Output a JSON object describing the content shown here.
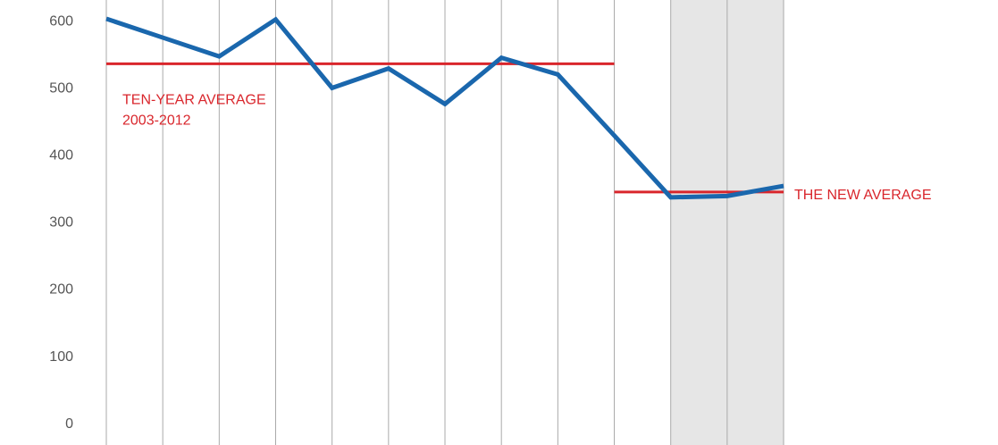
{
  "chart_data": {
    "type": "line",
    "categories": [
      null,
      null,
      null,
      null,
      null,
      null,
      null,
      null,
      null,
      null,
      null,
      null,
      null
    ],
    "series": [
      {
        "color": "#1a67ad",
        "values": [
          604,
          576,
          548,
          603,
          501,
          530,
          477,
          546,
          521,
          430,
          338,
          340,
          355
        ]
      }
    ],
    "ylim": [
      -31,
      632
    ],
    "yticks": [
      0,
      100,
      200,
      300,
      400,
      500,
      600
    ],
    "highlight": [
      10,
      12
    ],
    "reference_lines": [
      {
        "value": 537,
        "start": 0,
        "end": 9,
        "color": "#d9262c",
        "label": [
          "TEN-YEAR AVERAGE",
          "2003-2012"
        ]
      },
      {
        "value": 346,
        "start": 9,
        "end": 12,
        "color": "#d9262c",
        "label": [
          "THE NEW AVERAGE"
        ]
      }
    ]
  }
}
